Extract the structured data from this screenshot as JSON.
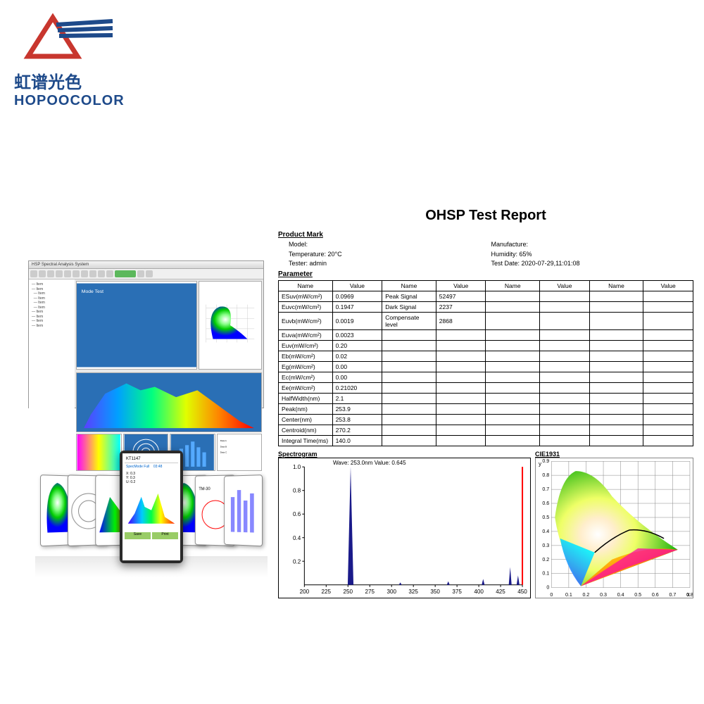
{
  "logo": {
    "chinese": "虹谱光色",
    "english": "HOPOOCOLOR",
    "red_color": "#c8362e",
    "blue_color": "#1e4a8a"
  },
  "report": {
    "title": "OHSP Test Report",
    "product_mark_label": "Product Mark",
    "model_label": "Model:",
    "model_value": "",
    "manufacture_label": "Manufacture:",
    "manufacture_value": "",
    "temperature_label": "Temperature:",
    "temperature_value": "20°C",
    "humidity_label": "Humidity:",
    "humidity_value": "65%",
    "tester_label": "Tester:",
    "tester_value": "admin",
    "test_date_label": "Test Date:",
    "test_date_value": "2020-07-29,11:01:08",
    "parameter_label": "Parameter",
    "headers": {
      "name": "Name",
      "value": "Value"
    },
    "rows": [
      {
        "n1": "ESuv(mW/cm²)",
        "v1": "0.0969",
        "n2": "Peak Signal",
        "v2": "52497"
      },
      {
        "n1": "Euvc(mW/cm²)",
        "v1": "0.1947",
        "n2": "Dark Signal",
        "v2": "2237"
      },
      {
        "n1": "Euvb(mW/cm²)",
        "v1": "0.0019",
        "n2": "Compensate level",
        "v2": "2868"
      },
      {
        "n1": "Euva(mW/cm²)",
        "v1": "0.0023",
        "n2": "",
        "v2": ""
      },
      {
        "n1": "Euv(mW/cm²)",
        "v1": "0.20",
        "n2": "",
        "v2": ""
      },
      {
        "n1": "Eb(mW/cm²)",
        "v1": "0.02",
        "n2": "",
        "v2": ""
      },
      {
        "n1": "Eg(mW/cm²)",
        "v1": "0.00",
        "n2": "",
        "v2": ""
      },
      {
        "n1": "Ec(mW/cm²)",
        "v1": "0.00",
        "n2": "",
        "v2": ""
      },
      {
        "n1": "Ee(mW/cm²)",
        "v1": "0.21020",
        "n2": "",
        "v2": ""
      },
      {
        "n1": "HalfWidth(nm)",
        "v1": "2.1",
        "n2": "",
        "v2": ""
      },
      {
        "n1": "Peak(nm)",
        "v1": "253.9",
        "n2": "",
        "v2": ""
      },
      {
        "n1": "Center(nm)",
        "v1": "253.8",
        "n2": "",
        "v2": ""
      },
      {
        "n1": "Centroid(nm)",
        "v1": "270.2",
        "n2": "",
        "v2": ""
      },
      {
        "n1": "Integral Time(ms)",
        "v1": "140.0",
        "n2": "",
        "v2": ""
      }
    ],
    "spectro": {
      "title": "Spectrogram",
      "annotation": "Wave: 253.0nm Value: 0.645",
      "xlabel_ticks": [
        "200",
        "225",
        "250",
        "275",
        "300",
        "325",
        "350",
        "375",
        "400",
        "425",
        "450"
      ],
      "ylabel_ticks": [
        "0.2",
        "0.4",
        "0.6",
        "0.8",
        "1.0"
      ],
      "xlim": [
        200,
        450
      ],
      "ylim": [
        0,
        1.0
      ],
      "peak_x": 253,
      "peak_color": "#1a1a8a",
      "marker_color": "#ff0000"
    },
    "cie": {
      "title": "CIE1931",
      "xticks": [
        "0",
        "0.1",
        "0.2",
        "0.3",
        "0.4",
        "0.5",
        "0.6",
        "0.7",
        "0.8"
      ],
      "yticks": [
        "0",
        "0.1",
        "0.2",
        "0.3",
        "0.4",
        "0.5",
        "0.6",
        "0.7",
        "0.8",
        "0.9"
      ],
      "x_axis_label": "x",
      "y_axis_label": "y",
      "grid_color": "#888888"
    }
  },
  "software": {
    "title_bar": "HSP Spectral Analysis System",
    "spectrum_gradient": [
      "#5a3fff",
      "#00a0ff",
      "#00ff80",
      "#e0ff00",
      "#ff8000",
      "#ff0000"
    ]
  }
}
